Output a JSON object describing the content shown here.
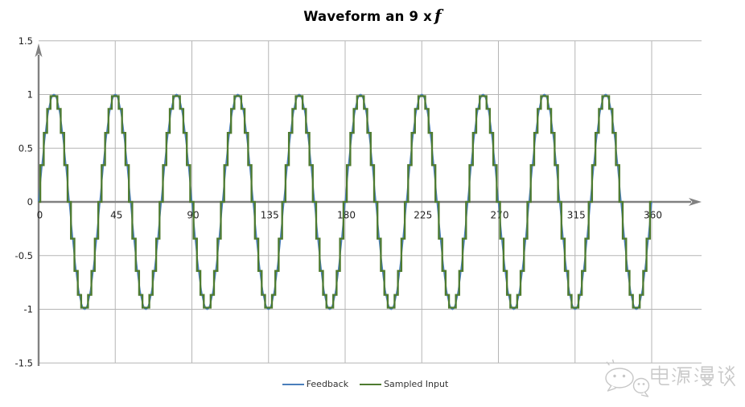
{
  "title": {
    "main": "Waveform an 9 x",
    "italic_suffix": "f"
  },
  "chart_data": {
    "type": "line",
    "title": "Waveform an 9 x f",
    "xlabel": "",
    "ylabel": "",
    "x_range": [
      0,
      360
    ],
    "y_range": [
      -1.5,
      1.5
    ],
    "x_ticks": [
      0,
      45,
      90,
      135,
      180,
      225,
      270,
      315,
      360
    ],
    "y_ticks": [
      1.5,
      1,
      0.5,
      0,
      -0.5,
      -1,
      -1.5
    ],
    "grid": true,
    "legend_position": "bottom-center",
    "series": [
      {
        "name": "Feedback",
        "color": "#4a7ebb",
        "waveform": "sine",
        "amplitude": 1,
        "cycles": 10,
        "period_x": 36,
        "phase": 0
      },
      {
        "name": "Sampled Input",
        "color": "#4e7b2f",
        "waveform": "sampled-sine-zero-order-hold",
        "amplitude": 1,
        "cycles": 10,
        "period_x": 36,
        "sample_interval_x": 2,
        "samples_per_cycle": 18
      }
    ]
  },
  "colors": {
    "grid": "#b5b5b5",
    "axis": "#818181",
    "tick_labels": "#1f1f1f"
  },
  "watermark": {
    "text": "电源漫谈",
    "icon": "wechat-logo"
  }
}
